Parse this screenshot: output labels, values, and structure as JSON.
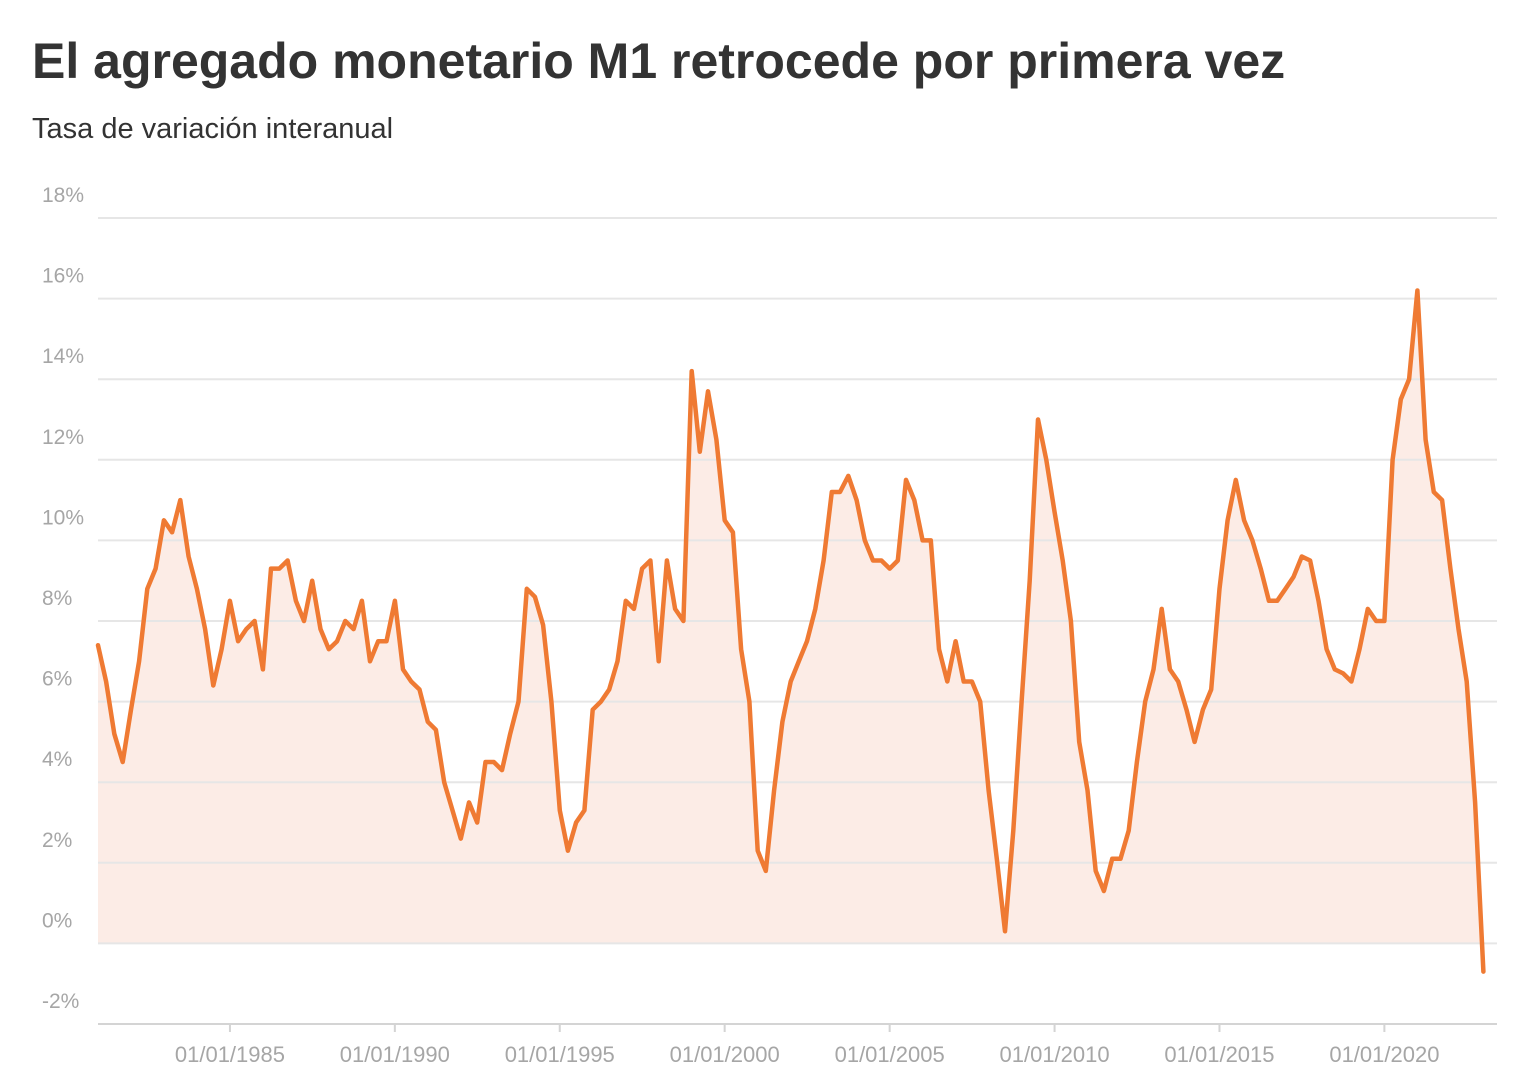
{
  "chart_data": {
    "type": "line",
    "title": "El agregado monetario M1 retrocede por primera vez",
    "subtitle": "Tasa de variación interanual",
    "x": [
      "1981-01-01",
      "1981-04-01",
      "1981-07-01",
      "1981-10-01",
      "1982-01-01",
      "1982-04-01",
      "1982-07-01",
      "1982-10-01",
      "1983-01-01",
      "1983-04-01",
      "1983-07-01",
      "1983-10-01",
      "1984-01-01",
      "1984-04-01",
      "1984-07-01",
      "1984-10-01",
      "1985-01-01",
      "1985-04-01",
      "1985-07-01",
      "1985-10-01",
      "1986-01-01",
      "1986-04-01",
      "1986-07-01",
      "1986-10-01",
      "1987-01-01",
      "1987-04-01",
      "1987-07-01",
      "1987-10-01",
      "1988-01-01",
      "1988-04-01",
      "1988-07-01",
      "1988-10-01",
      "1989-01-01",
      "1989-04-01",
      "1989-07-01",
      "1989-10-01",
      "1990-01-01",
      "1990-04-01",
      "1990-07-01",
      "1990-10-01",
      "1991-01-01",
      "1991-04-01",
      "1991-07-01",
      "1991-10-01",
      "1992-01-01",
      "1992-04-01",
      "1992-07-01",
      "1992-10-01",
      "1993-01-01",
      "1993-04-01",
      "1993-07-01",
      "1993-10-01",
      "1994-01-01",
      "1994-04-01",
      "1994-07-01",
      "1994-10-01",
      "1995-01-01",
      "1995-04-01",
      "1995-07-01",
      "1995-10-01",
      "1996-01-01",
      "1996-04-01",
      "1996-07-01",
      "1996-10-01",
      "1997-01-01",
      "1997-04-01",
      "1997-07-01",
      "1997-10-01",
      "1998-01-01",
      "1998-04-01",
      "1998-07-01",
      "1998-10-01",
      "1999-01-01",
      "1999-04-01",
      "1999-07-01",
      "1999-10-01",
      "2000-01-01",
      "2000-04-01",
      "2000-07-01",
      "2000-10-01",
      "2001-01-01",
      "2001-04-01",
      "2001-07-01",
      "2001-10-01",
      "2002-01-01",
      "2002-04-01",
      "2002-07-01",
      "2002-10-01",
      "2003-01-01",
      "2003-04-01",
      "2003-07-01",
      "2003-10-01",
      "2004-01-01",
      "2004-04-01",
      "2004-07-01",
      "2004-10-01",
      "2005-01-01",
      "2005-04-01",
      "2005-07-01",
      "2005-10-01",
      "2006-01-01",
      "2006-04-01",
      "2006-07-01",
      "2006-10-01",
      "2007-01-01",
      "2007-04-01",
      "2007-07-01",
      "2007-10-01",
      "2008-01-01",
      "2008-04-01",
      "2008-07-01",
      "2008-10-01",
      "2009-01-01",
      "2009-04-01",
      "2009-07-01",
      "2009-10-01",
      "2010-01-01",
      "2010-04-01",
      "2010-07-01",
      "2010-10-01",
      "2011-01-01",
      "2011-04-01",
      "2011-07-01",
      "2011-10-01",
      "2012-01-01",
      "2012-04-01",
      "2012-07-01",
      "2012-10-01",
      "2013-01-01",
      "2013-04-01",
      "2013-07-01",
      "2013-10-01",
      "2014-01-01",
      "2014-04-01",
      "2014-07-01",
      "2014-10-01",
      "2015-01-01",
      "2015-04-01",
      "2015-07-01",
      "2015-10-01",
      "2016-01-01",
      "2016-04-01",
      "2016-07-01",
      "2016-10-01",
      "2017-01-01",
      "2017-04-01",
      "2017-07-01",
      "2017-10-01",
      "2018-01-01",
      "2018-04-01",
      "2018-07-01",
      "2018-10-01",
      "2019-01-01",
      "2019-04-01",
      "2019-07-01",
      "2019-10-01",
      "2020-01-01",
      "2020-04-01",
      "2020-07-01",
      "2020-10-01",
      "2021-01-01",
      "2021-04-01",
      "2021-07-01",
      "2021-10-01",
      "2022-01-01",
      "2022-04-01",
      "2022-07-01",
      "2022-10-01",
      "2023-01-01"
    ],
    "series": [
      {
        "color": "#ef7a33",
        "values": [
          7.4,
          6.5,
          5.2,
          4.5,
          5.8,
          7.0,
          8.8,
          9.3,
          10.5,
          10.2,
          11.0,
          9.6,
          8.8,
          7.8,
          6.4,
          7.3,
          8.5,
          7.5,
          7.8,
          8.0,
          6.8,
          9.3,
          9.3,
          9.5,
          8.5,
          8.0,
          9.0,
          7.8,
          7.3,
          7.5,
          8.0,
          7.8,
          8.5,
          7.0,
          7.5,
          7.5,
          8.5,
          6.8,
          6.5,
          6.3,
          5.5,
          5.3,
          4.0,
          3.3,
          2.6,
          3.5,
          3.0,
          4.5,
          4.5,
          4.3,
          5.2,
          6.0,
          8.8,
          8.6,
          7.9,
          6.0,
          3.3,
          2.3,
          3.0,
          3.3,
          5.8,
          6.0,
          6.3,
          7.0,
          8.5,
          8.3,
          9.3,
          9.5,
          7.0,
          9.5,
          8.3,
          8.0,
          14.2,
          12.2,
          13.7,
          12.5,
          10.5,
          10.2,
          7.3,
          6.0,
          2.3,
          1.8,
          3.8,
          5.5,
          6.5,
          7.0,
          7.5,
          8.3,
          9.5,
          11.2,
          11.2,
          11.6,
          11.0,
          10.0,
          9.5,
          9.5,
          9.3,
          9.5,
          11.5,
          11.0,
          10.0,
          10.0,
          7.3,
          6.5,
          7.5,
          6.5,
          6.5,
          6.0,
          3.8,
          2.1,
          0.3,
          2.8,
          6.0,
          9.0,
          13.0,
          12.0,
          10.7,
          9.5,
          8.0,
          5.0,
          3.8,
          1.8,
          1.3,
          2.1,
          2.1,
          2.8,
          4.5,
          6.0,
          6.8,
          8.3,
          6.8,
          6.5,
          5.8,
          5.0,
          5.8,
          6.3,
          8.8,
          10.5,
          11.5,
          10.5,
          10.0,
          9.3,
          8.5,
          8.5,
          8.8,
          9.1,
          9.6,
          9.5,
          8.5,
          7.3,
          6.8,
          6.7,
          6.5,
          7.3,
          8.3,
          8.0,
          8.0,
          12.0,
          13.5,
          14.0,
          16.2,
          12.5,
          11.2,
          11.0,
          9.3,
          7.8,
          6.5,
          3.5,
          -0.7
        ]
      }
    ],
    "fill": "#fcece6",
    "xlim": [
      "1981-01-01",
      "2023-06-01"
    ],
    "xticks": [
      {
        "value": "1985-01-01",
        "label": "01/01/1985"
      },
      {
        "value": "1990-01-01",
        "label": "01/01/1990"
      },
      {
        "value": "1995-01-01",
        "label": "01/01/1995"
      },
      {
        "value": "2000-01-01",
        "label": "01/01/2000"
      },
      {
        "value": "2005-01-01",
        "label": "01/01/2005"
      },
      {
        "value": "2010-01-01",
        "label": "01/01/2010"
      },
      {
        "value": "2015-01-01",
        "label": "01/01/2015"
      },
      {
        "value": "2020-01-01",
        "label": "01/01/2020"
      }
    ],
    "ylim": [
      -2,
      18
    ],
    "yticks": [
      {
        "value": -2,
        "label": "-2%"
      },
      {
        "value": 0,
        "label": "0%"
      },
      {
        "value": 2,
        "label": "2%"
      },
      {
        "value": 4,
        "label": "4%"
      },
      {
        "value": 6,
        "label": "6%"
      },
      {
        "value": 8,
        "label": "8%"
      },
      {
        "value": 10,
        "label": "10%"
      },
      {
        "value": 12,
        "label": "12%"
      },
      {
        "value": 14,
        "label": "14%"
      },
      {
        "value": 16,
        "label": "16%"
      },
      {
        "value": 18,
        "label": "18%"
      }
    ],
    "grid": true
  }
}
